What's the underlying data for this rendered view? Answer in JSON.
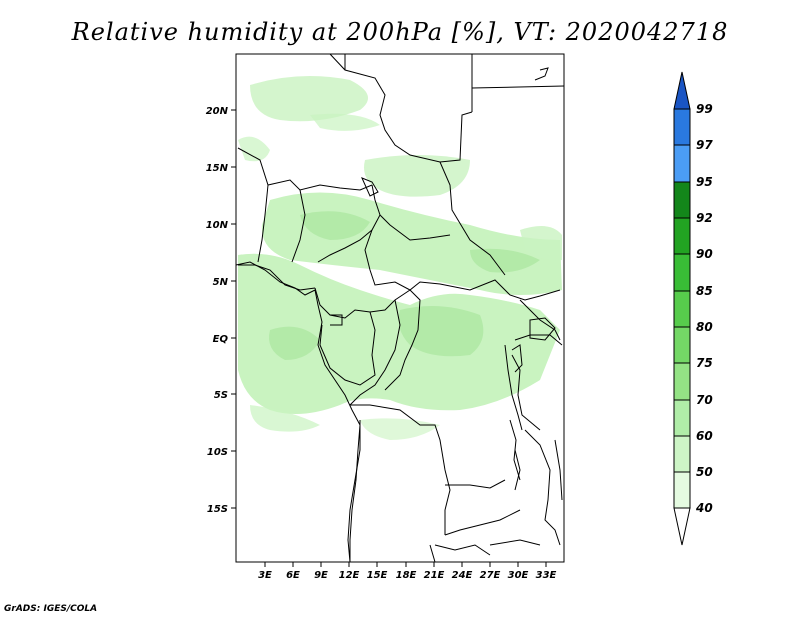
{
  "title": "Relative humidity at 200hPa [%], VT: 2020042718",
  "footer": "GrADS: IGES/COLA",
  "map": {
    "lat_labels": [
      "20N",
      "15N",
      "10N",
      "5N",
      "EQ",
      "5S",
      "10S",
      "15S"
    ],
    "lon_labels": [
      "3E",
      "6E",
      "9E",
      "12E",
      "15E",
      "18E",
      "21E",
      "24E",
      "27E",
      "30E",
      "33E"
    ]
  },
  "colorbar": {
    "levels": [
      "40",
      "50",
      "60",
      "70",
      "75",
      "80",
      "85",
      "90",
      "92",
      "95",
      "97",
      "99"
    ],
    "colors": [
      "#ffffff",
      "#e5fbe1",
      "#cdf5c6",
      "#b0eda8",
      "#94e385",
      "#74d866",
      "#57cc4c",
      "#39bd36",
      "#22a322",
      "#13861a",
      "#4b9df5",
      "#2a79df",
      "#1a55c4"
    ]
  },
  "colors": {
    "humid_light": "#c9f3c0",
    "humid_mid": "#b3eaa8",
    "land_border": "#000000"
  }
}
